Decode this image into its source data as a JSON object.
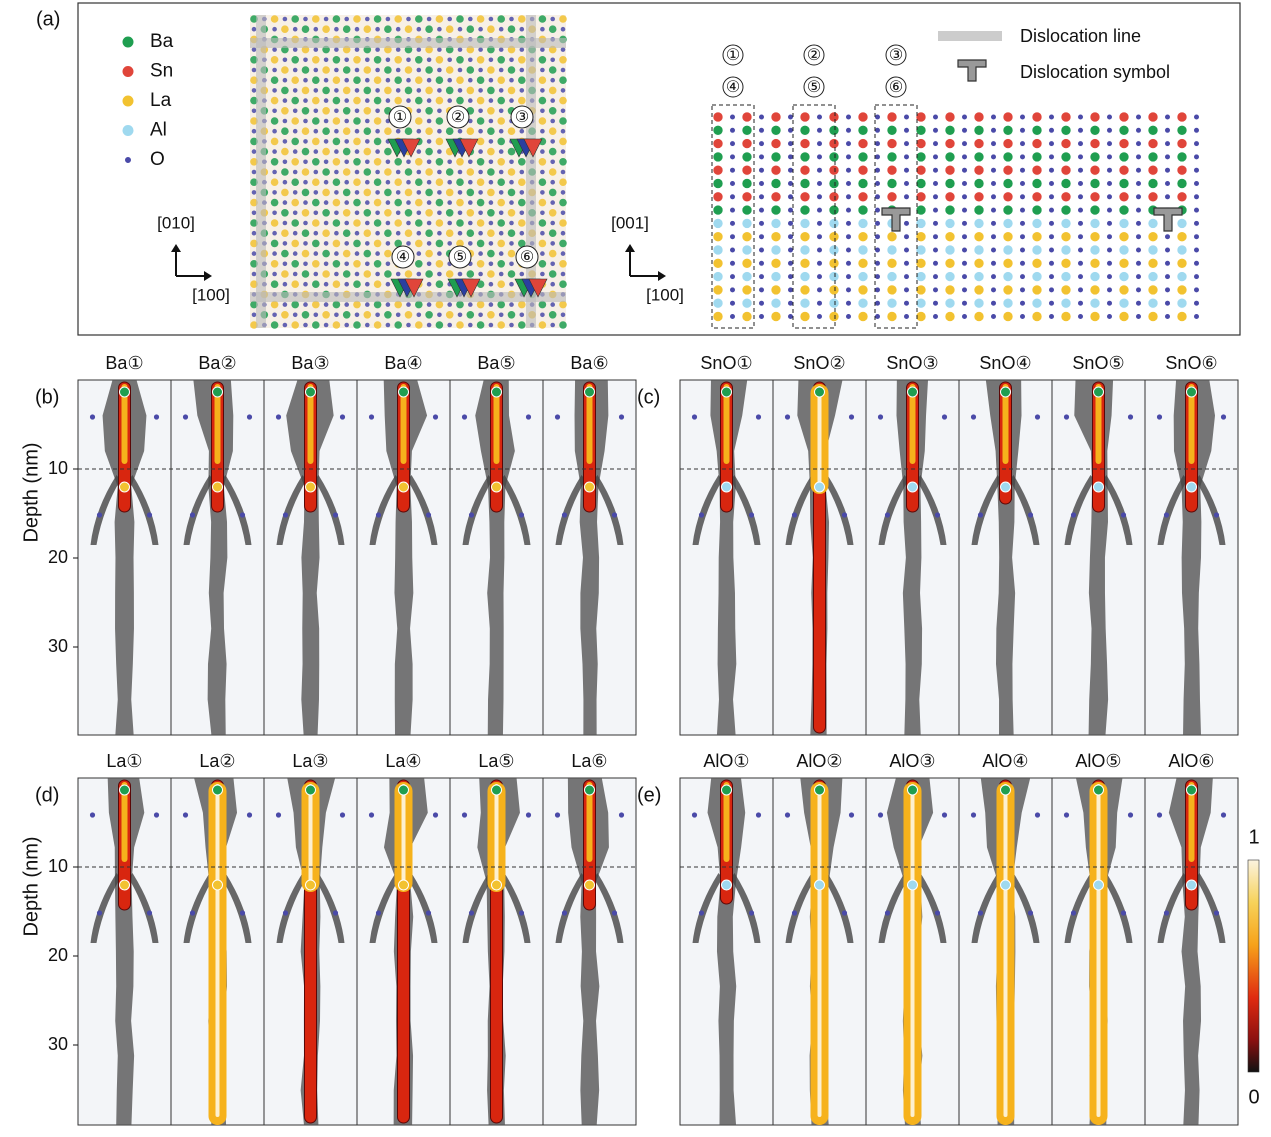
{
  "panel_a": {
    "label": "(a)",
    "legend": [
      {
        "name": "Ba",
        "color": "#1f9e50"
      },
      {
        "name": "Sn",
        "color": "#e0453a"
      },
      {
        "name": "La",
        "color": "#f2c230"
      },
      {
        "name": "Al",
        "color": "#9fd9ef"
      },
      {
        "name": "O",
        "color": "#4a4aa8"
      }
    ],
    "plan_view": {
      "axis_y": "[010]",
      "axis_x": "[100]",
      "markers": [
        "①",
        "②",
        "③",
        "④",
        "⑤",
        "⑥"
      ]
    },
    "cross_section": {
      "axis_y": "[001]",
      "axis_x": "[100]",
      "column_markers": [
        [
          "①",
          "④"
        ],
        [
          "②",
          "⑤"
        ],
        [
          "③",
          "⑥"
        ]
      ],
      "key": [
        "Dislocation line",
        "Dislocation symbol"
      ]
    }
  },
  "panels": [
    {
      "label": "(b)",
      "titles": [
        "Ba①",
        "Ba②",
        "Ba③",
        "Ba④",
        "Ba⑤",
        "Ba⑥"
      ],
      "y_label": "Depth (nm)",
      "yticks": [
        10,
        20,
        30
      ]
    },
    {
      "label": "(c)",
      "titles": [
        "SnO①",
        "SnO②",
        "SnO③",
        "SnO④",
        "SnO⑤",
        "SnO⑥"
      ]
    },
    {
      "label": "(d)",
      "titles": [
        "La①",
        "La②",
        "La③",
        "La④",
        "La⑤",
        "La⑥"
      ],
      "y_label": "Depth (nm)",
      "yticks": [
        10,
        20,
        30
      ]
    },
    {
      "label": "(e)",
      "titles": [
        "AlO①",
        "AlO②",
        "AlO③",
        "AlO④",
        "AlO⑤",
        "AlO⑥"
      ]
    }
  ],
  "colorbar": {
    "max": 1,
    "min": 0
  }
}
